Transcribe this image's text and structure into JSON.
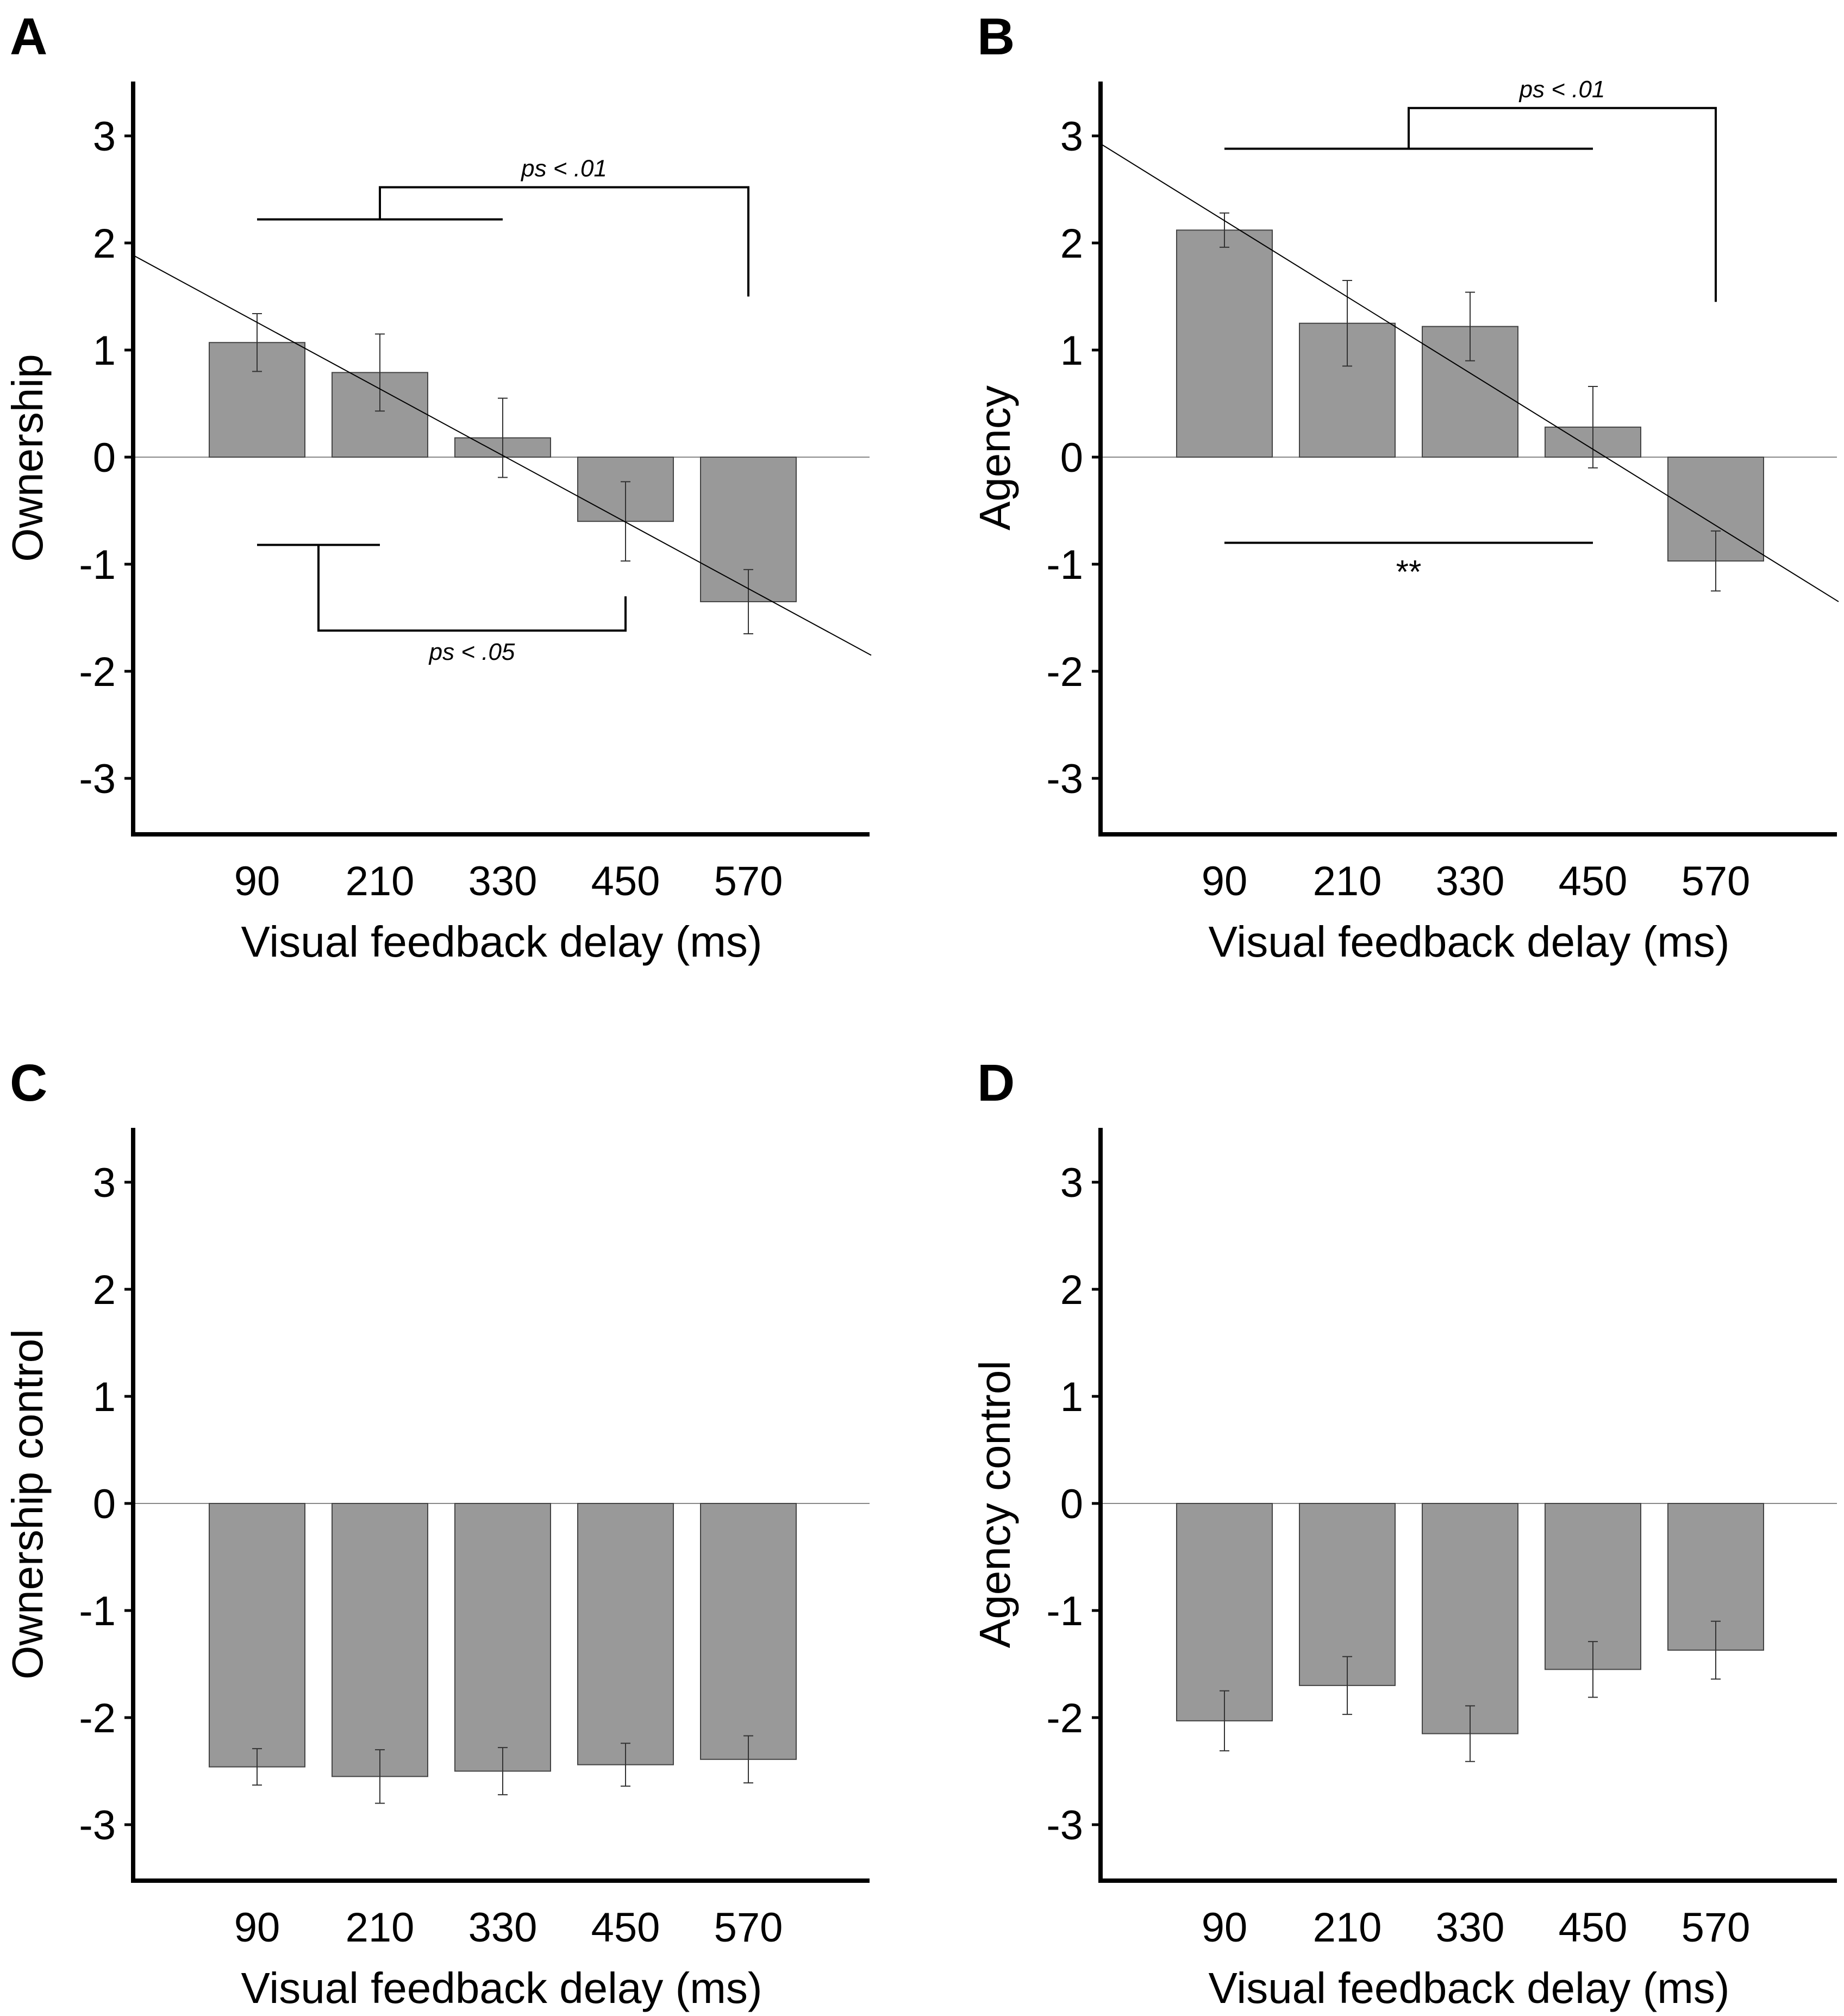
{
  "colors": {
    "bar": "#999999",
    "bar_edge": "#444444",
    "axis": "#000000",
    "line": "#000000"
  },
  "chart_data": [
    {
      "panel": "A",
      "type": "bar",
      "title": "",
      "xlabel": "Visual feedback delay (ms)",
      "ylabel": "Ownership",
      "categories": [
        "90",
        "210",
        "330",
        "450",
        "570"
      ],
      "values": [
        1.07,
        0.79,
        0.18,
        -0.6,
        -1.35
      ],
      "errors": [
        0.27,
        0.36,
        0.37,
        0.37,
        0.3
      ],
      "ylim": [
        -3.5,
        3.5
      ],
      "yticks": [
        "3",
        "2",
        "1",
        "0",
        "-1",
        "-2",
        "-3"
      ],
      "ytick_values": [
        3,
        2,
        1,
        0,
        -1,
        -2,
        -3
      ],
      "trend_line": [
        [
          -1.0,
          1.88
        ],
        [
          5.0,
          -1.85
        ]
      ],
      "annotations": [
        {
          "type": "bracket_above",
          "text": "ps < .01",
          "group_from": 0,
          "group_to": 2,
          "target": 4,
          "group_y": 2.22,
          "top_y": 2.52,
          "target_y": 1.5
        },
        {
          "type": "bracket_below",
          "text": "ps < .05",
          "group_from": 0,
          "group_to": 1,
          "target": 3,
          "group_y": -0.82,
          "bottom_y": -1.62,
          "target_y": -1.3
        }
      ]
    },
    {
      "panel": "B",
      "type": "bar",
      "title": "",
      "xlabel": "Visual feedback delay (ms)",
      "ylabel": "Agency",
      "categories": [
        "90",
        "210",
        "330",
        "450",
        "570"
      ],
      "values": [
        2.12,
        1.25,
        1.22,
        0.28,
        -0.97
      ],
      "errors": [
        0.16,
        0.4,
        0.32,
        0.38,
        0.28
      ],
      "ylim": [
        -3.5,
        3.5
      ],
      "yticks": [
        "3",
        "2",
        "1",
        "0",
        "-1",
        "-2",
        "-3"
      ],
      "ytick_values": [
        3,
        2,
        1,
        0,
        -1,
        -2,
        -3
      ],
      "trend_line": [
        [
          -1.0,
          2.92
        ],
        [
          5.0,
          -1.35
        ]
      ],
      "annotations": [
        {
          "type": "bracket_above",
          "text": "ps < .01",
          "group_from": 0,
          "group_to": 3,
          "target": 4,
          "group_y": 2.88,
          "top_y": 3.26,
          "target_y": 1.45
        },
        {
          "type": "line_below",
          "text": "**",
          "from": 0,
          "to": 3,
          "y": -0.8
        }
      ]
    },
    {
      "panel": "C",
      "type": "bar",
      "title": "",
      "xlabel": "Visual feedback delay (ms)",
      "ylabel": "Ownership control",
      "categories": [
        "90",
        "210",
        "330",
        "450",
        "570"
      ],
      "values": [
        -2.46,
        -2.55,
        -2.5,
        -2.44,
        -2.39
      ],
      "errors": [
        0.17,
        0.25,
        0.22,
        0.2,
        0.22
      ],
      "ylim": [
        -3.5,
        3.5
      ],
      "yticks": [
        "3",
        "2",
        "1",
        "0",
        "-1",
        "-2",
        "-3"
      ],
      "ytick_values": [
        3,
        2,
        1,
        0,
        -1,
        -2,
        -3
      ],
      "annotations": []
    },
    {
      "panel": "D",
      "type": "bar",
      "title": "",
      "xlabel": "Visual feedback delay (ms)",
      "ylabel": "Agency control",
      "categories": [
        "90",
        "210",
        "330",
        "450",
        "570"
      ],
      "values": [
        -2.03,
        -1.7,
        -2.15,
        -1.55,
        -1.37
      ],
      "errors": [
        0.28,
        0.27,
        0.26,
        0.26,
        0.27
      ],
      "ylim": [
        -3.5,
        3.5
      ],
      "yticks": [
        "3",
        "2",
        "1",
        "0",
        "-1",
        "-2",
        "-3"
      ],
      "ytick_values": [
        3,
        2,
        1,
        0,
        -1,
        -2,
        -3
      ],
      "annotations": []
    }
  ]
}
